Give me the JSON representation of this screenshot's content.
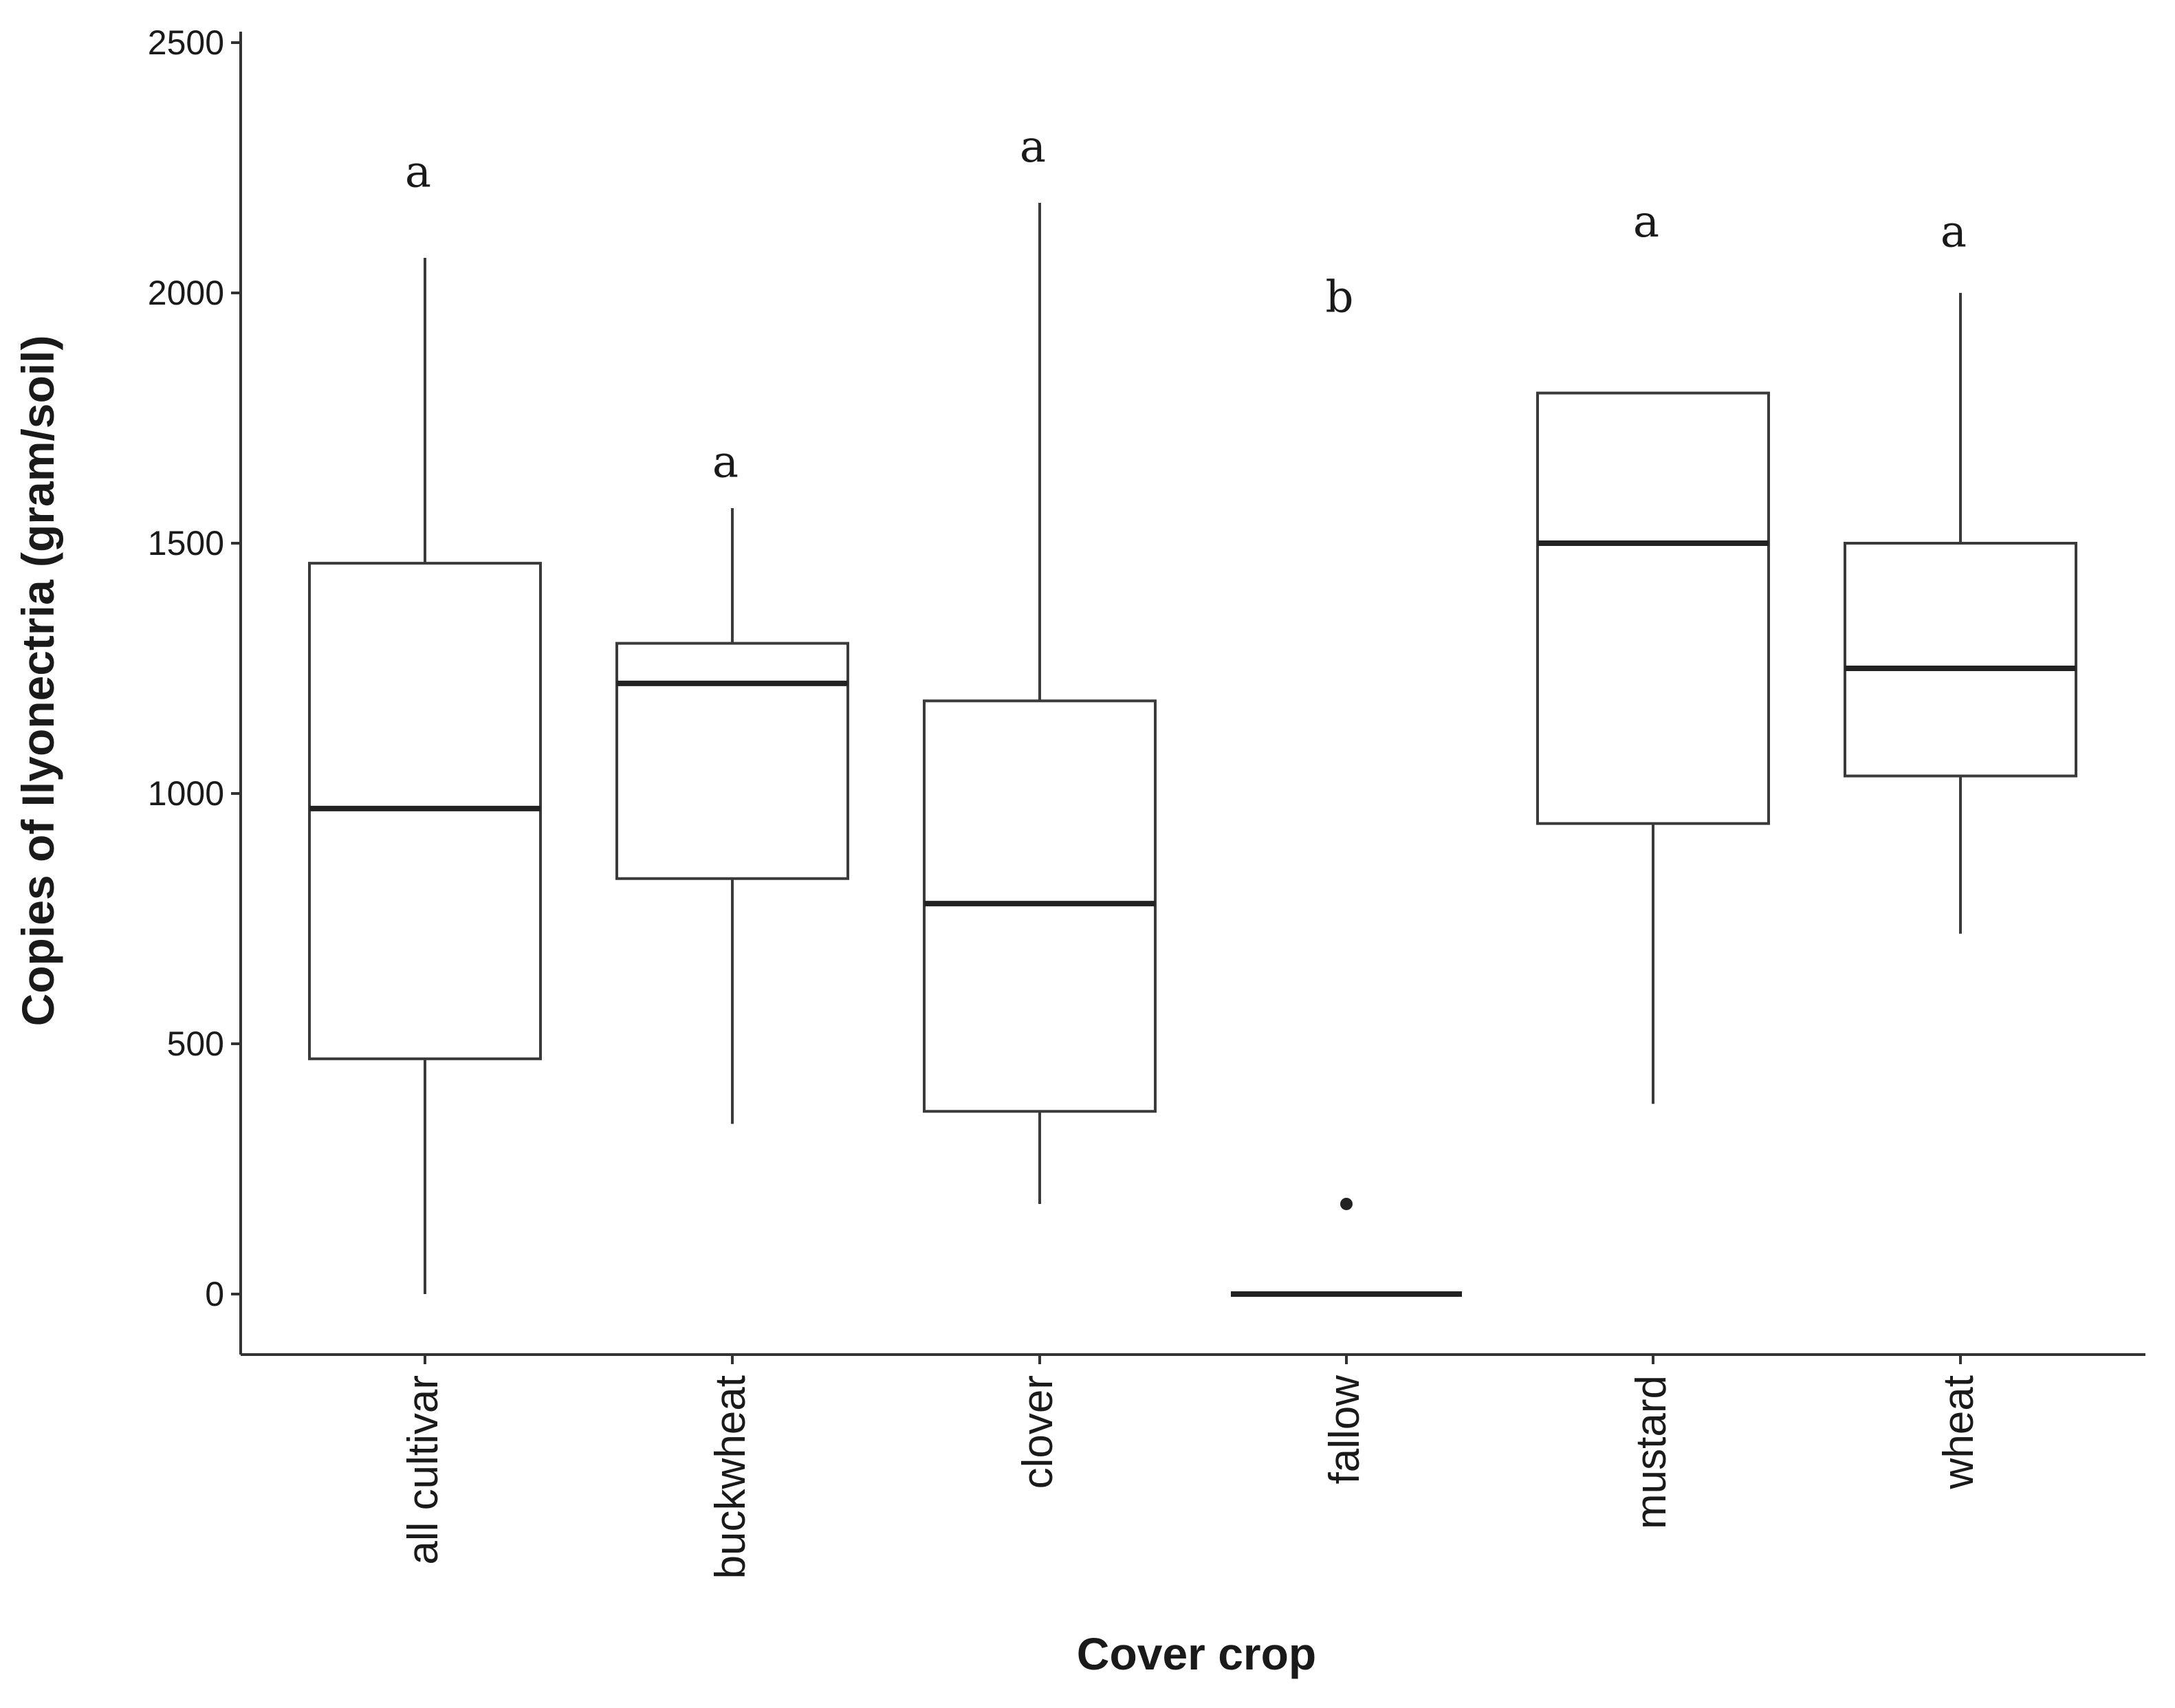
{
  "chart_data": {
    "type": "box",
    "xlabel": "Cover crop",
    "ylabel": "Copies of Ilyonectria (gram/soil)",
    "ylim": [
      -120,
      2520
    ],
    "yticks": [
      0,
      500,
      1000,
      1500,
      2000,
      2500
    ],
    "grid": false,
    "categories": [
      "all cultivar",
      "buckwheat",
      "clover",
      "fallow",
      "mustard",
      "wheat"
    ],
    "boxes": [
      {
        "category": "all cultivar",
        "whisker_low": 0,
        "q1": 470,
        "median": 970,
        "q3": 1460,
        "whisker_high": 2070,
        "outliers": [],
        "letter": "a",
        "letter_y": 2240
      },
      {
        "category": "buckwheat",
        "whisker_low": 340,
        "q1": 830,
        "median": 1220,
        "q3": 1300,
        "whisker_high": 1570,
        "outliers": [],
        "letter": "a",
        "letter_y": 1660
      },
      {
        "category": "clover",
        "whisker_low": 180,
        "q1": 365,
        "median": 780,
        "q3": 1185,
        "whisker_high": 2180,
        "outliers": [],
        "letter": "a",
        "letter_y": 2290
      },
      {
        "category": "fallow",
        "whisker_low": 0,
        "q1": 0,
        "median": 0,
        "q3": 0,
        "whisker_high": 0,
        "outliers": [
          180
        ],
        "letter": "b",
        "letter_y": 1990
      },
      {
        "category": "mustard",
        "whisker_low": 380,
        "q1": 940,
        "median": 1500,
        "q3": 1800,
        "whisker_high": 1800,
        "outliers": [],
        "letter": "a",
        "letter_y": 2140
      },
      {
        "category": "wheat",
        "whisker_low": 720,
        "q1": 1035,
        "median": 1250,
        "q3": 1500,
        "whisker_high": 2000,
        "outliers": [],
        "letter": "a",
        "letter_y": 2120
      }
    ]
  }
}
